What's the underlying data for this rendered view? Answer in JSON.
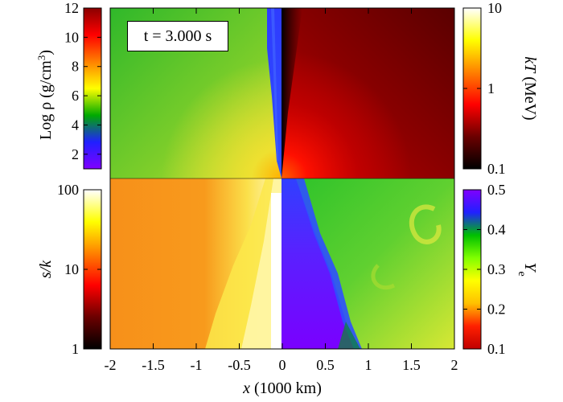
{
  "chart_data": {
    "type": "heatmap",
    "time_label": "t = 3.000 s",
    "xlabel_italic": "x",
    "xlabel_rest": " (1000 km)",
    "xlim": [
      -2,
      2
    ],
    "x_ticks": [
      "-2",
      "-1.5",
      "-1",
      "-0.5",
      "0",
      "0.5",
      "1",
      "1.5",
      "2"
    ],
    "quadrants": [
      {
        "position": "top-left",
        "quantity": "Log ρ"
      },
      {
        "position": "top-right",
        "quantity": "kT"
      },
      {
        "position": "bottom-left",
        "quantity": "s/k"
      },
      {
        "position": "bottom-right",
        "quantity": "Ye"
      }
    ],
    "colorbars": {
      "density": {
        "label_pre": "Log ρ (g/cm",
        "label_sup": "3",
        "label_post": ")",
        "scale": "linear",
        "range": [
          1,
          12
        ],
        "ticks": [
          "2",
          "4",
          "6",
          "8",
          "10",
          "12"
        ],
        "tick_values": [
          2,
          4,
          6,
          8,
          10,
          12
        ],
        "colors": [
          "#8000ff",
          "#2020ff",
          "#00aa00",
          "#ffff00",
          "#ff8000",
          "#ff0000",
          "#8b0000"
        ]
      },
      "temperature": {
        "label_italic": "kT",
        "label_rest": " (MeV)",
        "scale": "log",
        "range": [
          0.1,
          10
        ],
        "ticks": [
          "0.1",
          "1",
          "10"
        ],
        "tick_values": [
          0.1,
          1,
          10
        ],
        "colors": [
          "#000000",
          "#6b0000",
          "#ff0000",
          "#ff8000",
          "#ffff00",
          "#ffffff"
        ]
      },
      "entropy": {
        "label_italic": "s/k",
        "scale": "log",
        "range": [
          1,
          100
        ],
        "ticks": [
          "1",
          "10",
          "100"
        ],
        "tick_values": [
          1,
          10,
          100
        ],
        "colors": [
          "#000000",
          "#6b0000",
          "#ff0000",
          "#ff8000",
          "#ffff00",
          "#ffffff"
        ]
      },
      "electron_fraction": {
        "label_main": "Y",
        "label_sub": "e",
        "scale": "linear",
        "range": [
          0.1,
          0.5
        ],
        "ticks": [
          "0.1",
          "0.2",
          "0.3",
          "0.4",
          "0.5"
        ],
        "tick_values": [
          0.1,
          0.2,
          0.3,
          0.4,
          0.5
        ],
        "colors": [
          "#c00000",
          "#ff2000",
          "#ffc000",
          "#ffff00",
          "#80ff00",
          "#00c000",
          "#2020ff",
          "#8000ff"
        ]
      }
    }
  }
}
